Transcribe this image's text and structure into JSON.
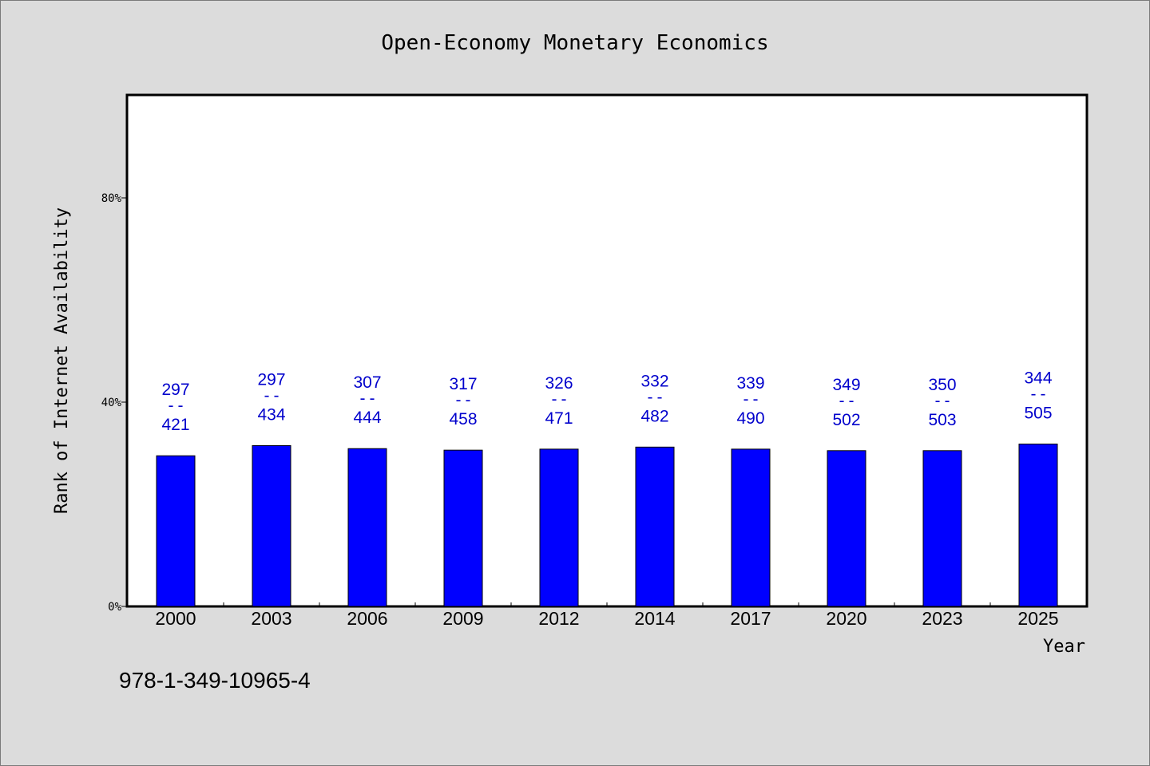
{
  "chart_data": {
    "type": "bar",
    "title": "Open-Economy Monetary Economics",
    "xlabel": "Year",
    "ylabel": "Rank of Internet Availability",
    "categories": [
      "2000",
      "2003",
      "2006",
      "2009",
      "2012",
      "2014",
      "2017",
      "2020",
      "2023",
      "2025"
    ],
    "values": [
      0.295,
      0.315,
      0.309,
      0.306,
      0.308,
      0.312,
      0.308,
      0.305,
      0.305,
      0.318
    ],
    "labels_top": [
      "297",
      "297",
      "307",
      "317",
      "326",
      "332",
      "339",
      "349",
      "350",
      "344"
    ],
    "labels_bottom": [
      "421",
      "434",
      "444",
      "458",
      "471",
      "482",
      "490",
      "502",
      "503",
      "505"
    ],
    "label_separator": "--",
    "ylim": [
      0,
      1.0
    ],
    "yticks": [
      0,
      0.4,
      0.8
    ],
    "ytick_labels": [
      "0%",
      "40%",
      "80%"
    ],
    "grid": false,
    "legend": "none",
    "bar_color": "#0000ff",
    "label_color": "#0000cc"
  },
  "footer": {
    "isbn": "978-1-349-10965-4"
  }
}
